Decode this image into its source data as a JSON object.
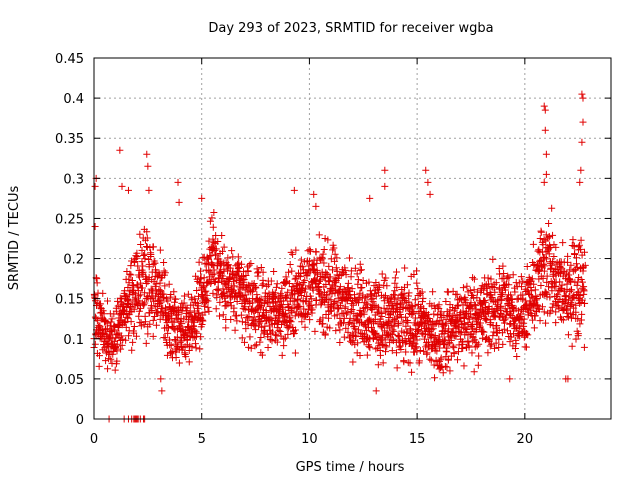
{
  "chart_data": {
    "type": "scatter",
    "title": "Day 293 of 2023, SRMTID for receiver wgba",
    "xlabel": "GPS time / hours",
    "ylabel": "SRMTID / TECUs",
    "xlim": [
      0,
      24
    ],
    "ylim": [
      0,
      0.45
    ],
    "grid": true,
    "marker": "+",
    "color": "#e00000",
    "x_ticks": [
      0,
      5,
      10,
      15,
      20
    ],
    "x_tick_labels": [
      "0",
      "5",
      "10",
      "15",
      "20"
    ],
    "y_ticks": [
      0,
      0.05,
      0.1,
      0.15,
      0.2,
      0.25,
      0.3,
      0.35,
      0.4,
      0.45
    ],
    "y_tick_labels": [
      "0",
      "0.05",
      "0.1",
      "0.15",
      "0.2",
      "0.25",
      "0.3",
      "0.35",
      "0.4",
      "0.45"
    ],
    "series": [
      {
        "name": "SRMTID",
        "envelope_hours": [
          0,
          0.5,
          1,
          1.5,
          2,
          2.5,
          3,
          3.5,
          4,
          4.5,
          5,
          5.5,
          6,
          7,
          8,
          9,
          10,
          11,
          12,
          13,
          14,
          15,
          16,
          17,
          18,
          19,
          20,
          20.5,
          21,
          21.5,
          22,
          22.5,
          22.8
        ],
        "envelope_median": [
          0.13,
          0.11,
          0.1,
          0.14,
          0.16,
          0.18,
          0.16,
          0.12,
          0.11,
          0.12,
          0.15,
          0.2,
          0.17,
          0.15,
          0.13,
          0.14,
          0.17,
          0.16,
          0.14,
          0.13,
          0.12,
          0.12,
          0.1,
          0.12,
          0.13,
          0.14,
          0.13,
          0.16,
          0.2,
          0.16,
          0.16,
          0.17,
          0.17
        ],
        "envelope_spread": [
          0.06,
          0.04,
          0.04,
          0.05,
          0.05,
          0.07,
          0.05,
          0.04,
          0.04,
          0.04,
          0.05,
          0.05,
          0.05,
          0.05,
          0.04,
          0.05,
          0.05,
          0.05,
          0.05,
          0.05,
          0.05,
          0.05,
          0.04,
          0.05,
          0.05,
          0.05,
          0.04,
          0.05,
          0.07,
          0.05,
          0.05,
          0.06,
          0.07
        ],
        "outliers": [
          {
            "x": 0.05,
            "y": 0.29
          },
          {
            "x": 0.1,
            "y": 0.3
          },
          {
            "x": 0.05,
            "y": 0.24
          },
          {
            "x": 1.2,
            "y": 0.335
          },
          {
            "x": 1.3,
            "y": 0.29
          },
          {
            "x": 1.6,
            "y": 0.285
          },
          {
            "x": 2.45,
            "y": 0.33
          },
          {
            "x": 2.5,
            "y": 0.315
          },
          {
            "x": 2.55,
            "y": 0.285
          },
          {
            "x": 3.9,
            "y": 0.295
          },
          {
            "x": 3.95,
            "y": 0.27
          },
          {
            "x": 5.0,
            "y": 0.275
          },
          {
            "x": 9.3,
            "y": 0.285
          },
          {
            "x": 10.2,
            "y": 0.28
          },
          {
            "x": 10.3,
            "y": 0.265
          },
          {
            "x": 12.8,
            "y": 0.275
          },
          {
            "x": 13.1,
            "y": 0.035
          },
          {
            "x": 13.5,
            "y": 0.31
          },
          {
            "x": 13.5,
            "y": 0.29
          },
          {
            "x": 15.4,
            "y": 0.31
          },
          {
            "x": 15.5,
            "y": 0.295
          },
          {
            "x": 15.6,
            "y": 0.28
          },
          {
            "x": 20.9,
            "y": 0.39
          },
          {
            "x": 20.95,
            "y": 0.385
          },
          {
            "x": 20.95,
            "y": 0.36
          },
          {
            "x": 21.0,
            "y": 0.33
          },
          {
            "x": 21.0,
            "y": 0.305
          },
          {
            "x": 20.9,
            "y": 0.295
          },
          {
            "x": 22.65,
            "y": 0.405
          },
          {
            "x": 22.7,
            "y": 0.4
          },
          {
            "x": 22.7,
            "y": 0.37
          },
          {
            "x": 22.65,
            "y": 0.345
          },
          {
            "x": 22.6,
            "y": 0.31
          },
          {
            "x": 22.55,
            "y": 0.295
          },
          {
            "x": 3.1,
            "y": 0.05
          },
          {
            "x": 3.15,
            "y": 0.035
          },
          {
            "x": 19.3,
            "y": 0.05
          },
          {
            "x": 21.9,
            "y": 0.05
          },
          {
            "x": 22.0,
            "y": 0.05
          }
        ],
        "zero_values_hours": [
          0.7,
          1.4,
          1.6,
          1.75,
          1.85,
          1.9,
          1.95,
          2.0,
          2.05,
          2.15,
          2.3,
          2.35
        ]
      }
    ]
  }
}
